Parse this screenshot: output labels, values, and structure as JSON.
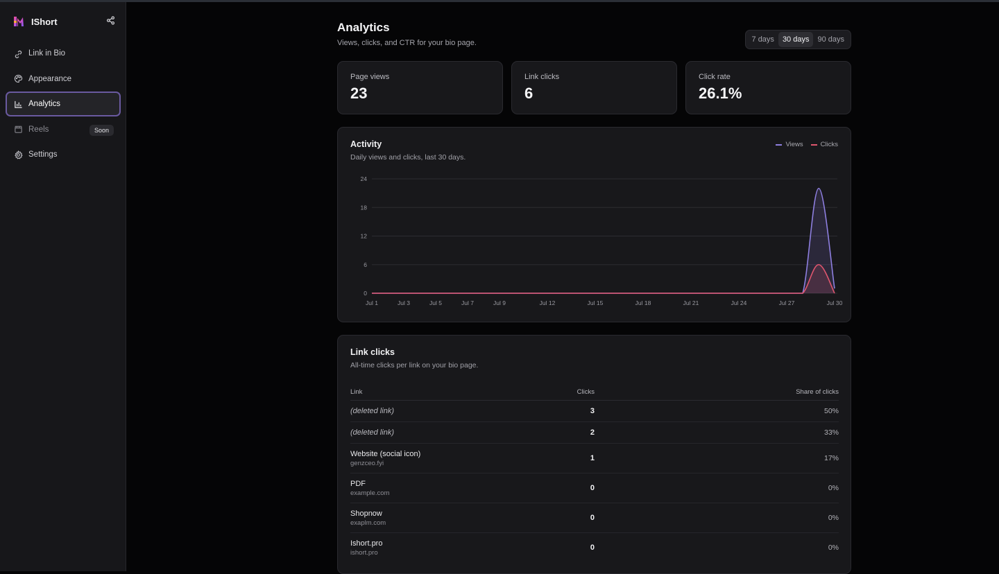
{
  "app": {
    "name": "IShort"
  },
  "sidebar": {
    "items": [
      {
        "label": "Link in Bio",
        "icon": "link-icon"
      },
      {
        "label": "Appearance",
        "icon": "palette-icon"
      },
      {
        "label": "Analytics",
        "icon": "bar-chart-icon",
        "active": true
      },
      {
        "label": "Reels",
        "icon": "clapperboard-icon",
        "badge": "Soon"
      },
      {
        "label": "Settings",
        "icon": "gear-icon"
      }
    ]
  },
  "header": {
    "title": "Analytics",
    "subtitle": "Views, clicks, and CTR for your bio page.",
    "ranges": [
      "7 days",
      "30 days",
      "90 days"
    ],
    "selected_range": "30 days"
  },
  "stats": [
    {
      "label": "Page views",
      "value": "23"
    },
    {
      "label": "Link clicks",
      "value": "6"
    },
    {
      "label": "Click rate",
      "value": "26.1%"
    }
  ],
  "activity": {
    "title": "Activity",
    "subtitle": "Daily views and clicks, last 30 days.",
    "legend": [
      "Views",
      "Clicks"
    ]
  },
  "chart_data": {
    "type": "area",
    "title": "Activity",
    "subtitle": "Daily views and clicks, last 30 days.",
    "x": [
      "Jul 1",
      "Jul 2",
      "Jul 3",
      "Jul 4",
      "Jul 5",
      "Jul 6",
      "Jul 7",
      "Jul 8",
      "Jul 9",
      "Jul 10",
      "Jul 11",
      "Jul 12",
      "Jul 13",
      "Jul 14",
      "Jul 15",
      "Jul 16",
      "Jul 17",
      "Jul 18",
      "Jul 19",
      "Jul 20",
      "Jul 21",
      "Jul 22",
      "Jul 23",
      "Jul 24",
      "Jul 25",
      "Jul 26",
      "Jul 27",
      "Jul 28",
      "Jul 29",
      "Jul 30"
    ],
    "tick_labels": [
      "Jul 1",
      "Jul 3",
      "Jul 5",
      "Jul 7",
      "Jul 9",
      "Jul 12",
      "Jul 15",
      "Jul 18",
      "Jul 21",
      "Jul 24",
      "Jul 27",
      "Jul 30"
    ],
    "series": [
      {
        "name": "Views",
        "color": "#8e7fe0",
        "values": [
          0,
          0,
          0,
          0,
          0,
          0,
          0,
          0,
          0,
          0,
          0,
          0,
          0,
          0,
          0,
          0,
          0,
          0,
          0,
          0,
          0,
          0,
          0,
          0,
          0,
          0,
          0,
          0,
          22,
          1
        ]
      },
      {
        "name": "Clicks",
        "color": "#e0566e",
        "values": [
          0,
          0,
          0,
          0,
          0,
          0,
          0,
          0,
          0,
          0,
          0,
          0,
          0,
          0,
          0,
          0,
          0,
          0,
          0,
          0,
          0,
          0,
          0,
          0,
          0,
          0,
          0,
          0,
          6,
          0
        ]
      }
    ],
    "yticks": [
      0,
      6,
      12,
      18,
      24
    ],
    "ylim": [
      0,
      24
    ],
    "grid": true,
    "legend_position": "top-right"
  },
  "link_clicks": {
    "title": "Link clicks",
    "subtitle": "All-time clicks per link on your bio page.",
    "columns": [
      "Link",
      "Clicks",
      "Share of clicks"
    ],
    "rows": [
      {
        "link": "(deleted link)",
        "host": "",
        "clicks": "3",
        "share": "50%",
        "deleted": true
      },
      {
        "link": "(deleted link)",
        "host": "",
        "clicks": "2",
        "share": "33%",
        "deleted": true
      },
      {
        "link": "Website (social icon)",
        "host": "genzceo.fyi",
        "clicks": "1",
        "share": "17%"
      },
      {
        "link": "PDF",
        "host": "example.com",
        "clicks": "0",
        "share": "0%"
      },
      {
        "link": "Shopnow",
        "host": "exaplm.com",
        "clicks": "0",
        "share": "0%"
      },
      {
        "link": "Ishort.pro",
        "host": "ishort.pro",
        "clicks": "0",
        "share": "0%"
      }
    ]
  }
}
